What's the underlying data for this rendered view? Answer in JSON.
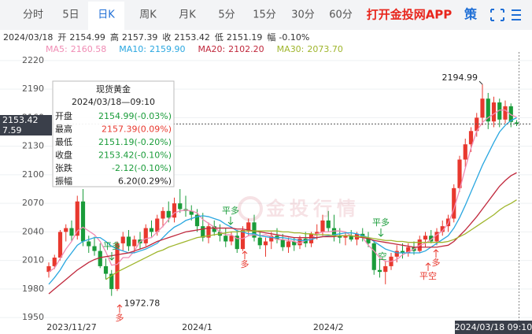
{
  "chart_data": {
    "type": "candlestick",
    "tabs": [
      "分时",
      "5日",
      "日K",
      "周K",
      "月K",
      "5分",
      "15分",
      "30分",
      "60分"
    ],
    "selected_tab": 2,
    "app_link": "打开金投网APP",
    "strategy_icon": "策",
    "watermark": "金投行情",
    "header": {
      "date": "2024/03/18",
      "fields": [
        {
          "label": "开",
          "value": 2154.99
        },
        {
          "label": "高",
          "value": 2157.39
        },
        {
          "label": "收",
          "value": 2153.42
        },
        {
          "label": "低",
          "value": 2151.19
        },
        {
          "label": "幅",
          "value": -0.1,
          "value_label": "-0.10%"
        }
      ]
    },
    "tooltip": {
      "title": "现货黄金",
      "time": "2024/03/18—09:10",
      "rows": [
        {
          "label": "开盘",
          "text": "2154.99(-0.03%)",
          "color": "#1a9c3a"
        },
        {
          "label": "最高",
          "text": "2157.39(0.09%)",
          "color": "#e8382e"
        },
        {
          "label": "最低",
          "text": "2151.19(-0.20%)",
          "color": "#1a9c3a"
        },
        {
          "label": "收盘",
          "text": "2153.42(-0.10%)",
          "color": "#1a9c3a"
        },
        {
          "label": "张跌",
          "text": "-2.12(-0.10%)",
          "color": "#1a9c3a"
        },
        {
          "label": "振幅",
          "text": "6.20(0.29%)",
          "color": "#222222"
        }
      ]
    },
    "cursor_labels": [
      "2153.42",
      "7.59"
    ],
    "cursor_time": "2024/03/18 09:10",
    "signals": [
      {
        "text": "平多",
        "color": "#1a9c3a"
      },
      {
        "text": "多",
        "color": "#e8382e"
      },
      {
        "text": "平多",
        "color": "#1a9c3a"
      },
      {
        "text": "多",
        "color": "#e8382e"
      },
      {
        "text": "平多",
        "color": "#1a9c3a"
      },
      {
        "text": "空",
        "color": "#1a9c3a"
      },
      {
        "text": "平空",
        "color": "#e8382e"
      },
      {
        "text": "多",
        "color": "#e8382e"
      }
    ],
    "up_color": "#e8382e",
    "down_color": "#1a9c3a",
    "ylim": [
      1946,
      2229
    ],
    "yticks": [
      1950,
      1980,
      2010,
      2040,
      2070,
      2100,
      2130,
      2160,
      2190,
      2220
    ],
    "grid": true,
    "categories": [
      null,
      null,
      null,
      null,
      "2023/11/27",
      null,
      null,
      null,
      null,
      null,
      null,
      null,
      null,
      null,
      null,
      null,
      null,
      null,
      null,
      null,
      null,
      null,
      null,
      null,
      null,
      null,
      "2024/1",
      null,
      null,
      null,
      null,
      null,
      null,
      null,
      null,
      null,
      null,
      null,
      null,
      null,
      null,
      null,
      null,
      null,
      null,
      null,
      null,
      null,
      null,
      "2024/2",
      null,
      null,
      null,
      null,
      null,
      null,
      null,
      null,
      null,
      null,
      null,
      null,
      null,
      null,
      null,
      null,
      null,
      null,
      null,
      null,
      null,
      null,
      null,
      null,
      null,
      null,
      null,
      null,
      null,
      null,
      null,
      null,
      null
    ],
    "candles": [
      [
        1998,
        2008,
        1992,
        2004
      ],
      [
        2004,
        2016,
        2001,
        2013
      ],
      [
        2013,
        2042,
        2010,
        2040
      ],
      [
        2040,
        2048,
        2030,
        2044
      ],
      [
        2044,
        2052,
        2030,
        2036
      ],
      [
        2036,
        2078,
        2032,
        2072
      ],
      [
        2072,
        2085,
        2025,
        2030
      ],
      [
        2030,
        2036,
        2018,
        2025
      ],
      [
        2025,
        2035,
        2015,
        2020
      ],
      [
        2020,
        2028,
        2002,
        2004
      ],
      [
        2004,
        2012,
        1990,
        1996
      ],
      [
        1996,
        2000,
        1972.78,
        1980
      ],
      [
        1980,
        2030,
        1978,
        2028
      ],
      [
        2028,
        2040,
        2020,
        2035
      ],
      [
        2035,
        2042,
        2020,
        2025
      ],
      [
        2025,
        2036,
        2018,
        2032
      ],
      [
        2032,
        2040,
        2022,
        2028
      ],
      [
        2028,
        2048,
        2025,
        2044
      ],
      [
        2044,
        2052,
        2035,
        2040
      ],
      [
        2040,
        2058,
        2036,
        2054
      ],
      [
        2054,
        2066,
        2045,
        2062
      ],
      [
        2062,
        2072,
        2050,
        2055
      ],
      [
        2055,
        2076,
        2050,
        2070
      ],
      [
        2070,
        2085,
        2060,
        2064
      ],
      [
        2064,
        2078,
        2056,
        2062
      ],
      [
        2062,
        2068,
        2052,
        2058
      ],
      [
        2058,
        2064,
        2040,
        2046
      ],
      [
        2046,
        2060,
        2030,
        2034
      ],
      [
        2034,
        2050,
        2028,
        2046
      ],
      [
        2046,
        2052,
        2036,
        2040
      ],
      [
        2040,
        2048,
        2030,
        2036
      ],
      [
        2036,
        2044,
        2024,
        2030
      ],
      [
        2030,
        2040,
        2026,
        2036
      ],
      [
        2036,
        2042,
        2018,
        2022
      ],
      [
        2022,
        2046,
        2020,
        2042
      ],
      [
        2042,
        2054,
        2036,
        2050
      ],
      [
        2050,
        2058,
        2030,
        2034
      ],
      [
        2034,
        2040,
        2022,
        2026
      ],
      [
        2026,
        2034,
        2014,
        2030
      ],
      [
        2030,
        2040,
        2022,
        2036
      ],
      [
        2036,
        2044,
        2028,
        2032
      ],
      [
        2032,
        2038,
        2020,
        2024
      ],
      [
        2024,
        2034,
        2018,
        2030
      ],
      [
        2030,
        2034,
        2020,
        2026
      ],
      [
        2026,
        2036,
        2022,
        2033
      ],
      [
        2033,
        2040,
        2024,
        2028
      ],
      [
        2028,
        2040,
        2024,
        2038
      ],
      [
        2038,
        2048,
        2032,
        2040
      ],
      [
        2040,
        2058,
        2036,
        2052
      ],
      [
        2052,
        2062,
        2040,
        2044
      ],
      [
        2044,
        2058,
        2030,
        2036
      ],
      [
        2036,
        2044,
        2028,
        2034
      ],
      [
        2034,
        2040,
        2026,
        2036
      ],
      [
        2036,
        2042,
        2030,
        2032
      ],
      [
        2032,
        2040,
        2026,
        2038
      ],
      [
        2038,
        2044,
        2030,
        2034
      ],
      [
        2034,
        2040,
        2024,
        2028
      ],
      [
        2028,
        2030,
        1995,
        2000
      ],
      [
        2000,
        2012,
        1992,
        1998
      ],
      [
        1998,
        2010,
        1985,
        2004
      ],
      [
        2004,
        2018,
        2000,
        2014
      ],
      [
        2014,
        2026,
        2008,
        2020
      ],
      [
        2020,
        2028,
        2012,
        2018
      ],
      [
        2018,
        2028,
        2014,
        2024
      ],
      [
        2024,
        2030,
        2016,
        2020
      ],
      [
        2020,
        2036,
        2018,
        2032
      ],
      [
        2032,
        2040,
        2024,
        2036
      ],
      [
        2036,
        2042,
        2028,
        2030
      ],
      [
        2030,
        2044,
        2026,
        2040
      ],
      [
        2040,
        2052,
        2036,
        2046
      ],
      [
        2046,
        2058,
        2040,
        2054
      ],
      [
        2054,
        2090,
        2050,
        2086
      ],
      [
        2086,
        2120,
        2082,
        2116
      ],
      [
        2116,
        2138,
        2108,
        2132
      ],
      [
        2132,
        2150,
        2124,
        2146
      ],
      [
        2146,
        2165,
        2140,
        2160
      ],
      [
        2160,
        2194.99,
        2152,
        2180
      ],
      [
        2180,
        2186,
        2148,
        2156
      ],
      [
        2156,
        2182,
        2150,
        2176
      ],
      [
        2176,
        2180,
        2150,
        2158
      ],
      [
        2158,
        2178,
        2154,
        2172
      ],
      [
        2172,
        2175,
        2150,
        2155.54
      ],
      [
        2154.99,
        2157.39,
        2151.19,
        2153.42
      ]
    ],
    "series": [
      {
        "name": "MA5:",
        "color": "#f08cb4",
        "legend_value": "2160.58",
        "values": [
          1998,
          2002,
          2012,
          2022,
          2030,
          2041,
          2045,
          2041,
          2037,
          2030,
          2019,
          2005,
          2006,
          2013,
          2013,
          2020,
          2030,
          2033,
          2034,
          2040,
          2046,
          2053,
          2060,
          2062,
          2063,
          2062,
          2060,
          2053,
          2049,
          2045,
          2040,
          2037,
          2037,
          2033,
          2033,
          2036,
          2037,
          2036,
          2037,
          2035,
          2032,
          2032,
          2031,
          2030,
          2028,
          2031,
          2033,
          2038,
          2040,
          2040,
          2041,
          2041,
          2040,
          2036,
          2035,
          2034,
          2026,
          2020,
          2013,
          2009,
          2009,
          2011,
          2016,
          2019,
          2022,
          2026,
          2028,
          2032,
          2037,
          2041,
          2049,
          2064,
          2084,
          2107,
          2128,
          2146,
          2155,
          2160,
          2164,
          2168,
          2168,
          2163,
          2160.58
        ]
      },
      {
        "name": "MA10:",
        "color": "#2aa7e0",
        "legend_value": "2159.90",
        "values": [
          1985,
          1992,
          2000,
          2010,
          2018,
          2026,
          2030,
          2032,
          2034,
          2034,
          2030,
          2025,
          2022,
          2020,
          2018,
          2018,
          2020,
          2022,
          2025,
          2028,
          2034,
          2040,
          2045,
          2048,
          2052,
          2054,
          2056,
          2057,
          2056,
          2054,
          2052,
          2048,
          2045,
          2041,
          2040,
          2038,
          2038,
          2036,
          2035,
          2034,
          2034,
          2034,
          2033,
          2032,
          2031,
          2031,
          2032,
          2034,
          2035,
          2036,
          2037,
          2038,
          2039,
          2039,
          2038,
          2036,
          2034,
          2030,
          2026,
          2022,
          2020,
          2018,
          2018,
          2018,
          2018,
          2018,
          2020,
          2024,
          2028,
          2032,
          2036,
          2044,
          2055,
          2068,
          2082,
          2096,
          2110,
          2122,
          2134,
          2145,
          2152,
          2157,
          2159.9
        ]
      },
      {
        "name": "MA20:",
        "color": "#c0283c",
        "legend_value": "2102.20",
        "values": [
          1975,
          1980,
          1985,
          1990,
          1995,
          2000,
          2004,
          2008,
          2011,
          2013,
          2014,
          2015,
          2016,
          2017,
          2018,
          2020,
          2022,
          2024,
          2027,
          2030,
          2032,
          2034,
          2036,
          2038,
          2040,
          2041,
          2042,
          2043,
          2044,
          2044,
          2044,
          2044,
          2044,
          2043,
          2043,
          2042,
          2041,
          2040,
          2039,
          2038,
          2037,
          2036,
          2035,
          2034,
          2034,
          2034,
          2034,
          2034,
          2035,
          2035,
          2035,
          2036,
          2036,
          2036,
          2035,
          2034,
          2033,
          2031,
          2030,
          2029,
          2028,
          2027,
          2026,
          2025,
          2024,
          2024,
          2024,
          2024,
          2024,
          2025,
          2026,
          2030,
          2036,
          2042,
          2049,
          2056,
          2064,
          2072,
          2080,
          2088,
          2094,
          2099,
          2102.2
        ]
      },
      {
        "name": "MA30:",
        "color": "#9fb52c",
        "legend_value": "2073.70",
        "values": [
          null,
          null,
          null,
          null,
          null,
          null,
          null,
          null,
          null,
          null,
          1990,
          1994,
          1998,
          2001,
          2004,
          2007,
          2010,
          2013,
          2016,
          2019,
          2021,
          2024,
          2026,
          2028,
          2030,
          2032,
          2034,
          2035,
          2036,
          2037,
          2038,
          2039,
          2040,
          2040,
          2041,
          2041,
          2041,
          2041,
          2041,
          2041,
          2041,
          2040,
          2040,
          2039,
          2039,
          2038,
          2038,
          2037,
          2037,
          2037,
          2036,
          2036,
          2036,
          2036,
          2035,
          2035,
          2034,
          2033,
          2032,
          2031,
          2031,
          2030,
          2030,
          2029,
          2029,
          2029,
          2029,
          2029,
          2029,
          2029,
          2030,
          2032,
          2035,
          2038,
          2042,
          2046,
          2050,
          2054,
          2058,
          2063,
          2067,
          2070,
          2073.7
        ]
      }
    ]
  }
}
